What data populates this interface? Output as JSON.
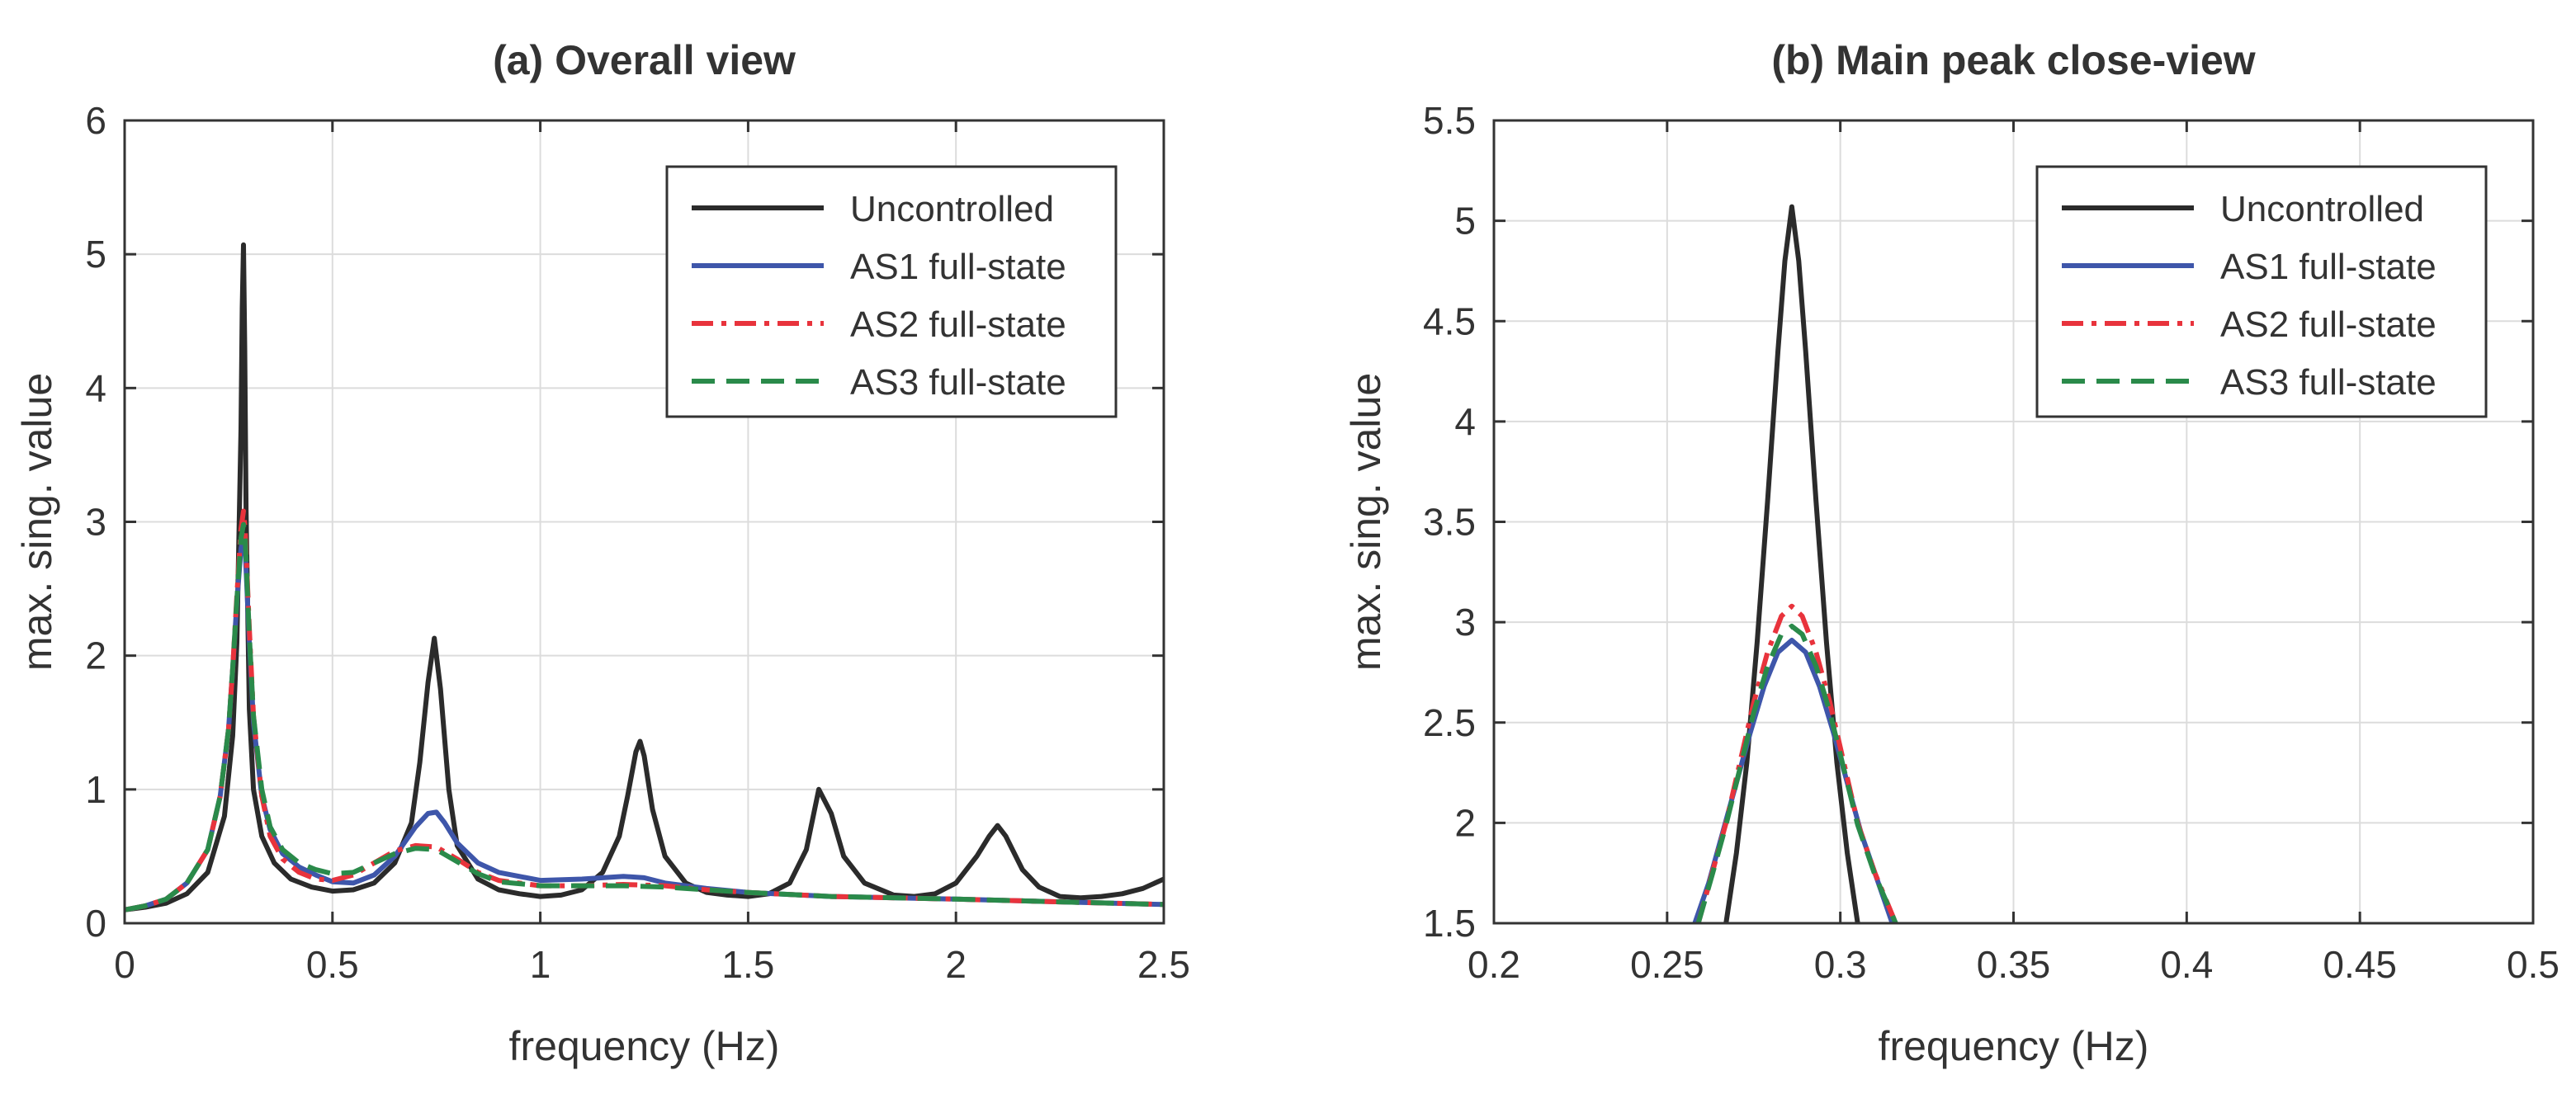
{
  "colors": {
    "uncontrolled": "#2b2b2b",
    "as1": "#3e56aa",
    "as2": "#e8333c",
    "as3": "#2a8a4a",
    "grid": "#dcdcdc",
    "axis": "#333333",
    "text": "#333333"
  },
  "chart_data": [
    {
      "type": "line",
      "title": "(a) Overall view",
      "xlabel": "frequency (Hz)",
      "ylabel": "max. sing. value",
      "xlim": [
        0,
        2.5
      ],
      "ylim": [
        0,
        6
      ],
      "xticks": [
        0,
        0.5,
        1,
        1.5,
        2,
        2.5
      ],
      "xtick_labels": [
        "0",
        "0.5",
        "1",
        "1.5",
        "2",
        "2.5"
      ],
      "yticks": [
        0,
        1,
        2,
        3,
        4,
        5,
        6
      ],
      "ytick_labels": [
        "0",
        "1",
        "2",
        "3",
        "4",
        "5",
        "6"
      ],
      "grid": true,
      "legend_position": "top-right",
      "series": [
        {
          "name": "Uncontrolled",
          "style": "solid",
          "color": "#2b2b2b",
          "x": [
            0,
            0.05,
            0.1,
            0.15,
            0.2,
            0.24,
            0.26,
            0.27,
            0.28,
            0.283,
            0.286,
            0.289,
            0.292,
            0.3,
            0.31,
            0.33,
            0.36,
            0.4,
            0.45,
            0.5,
            0.55,
            0.6,
            0.65,
            0.69,
            0.71,
            0.73,
            0.745,
            0.76,
            0.78,
            0.8,
            0.85,
            0.9,
            0.95,
            1.0,
            1.05,
            1.1,
            1.15,
            1.19,
            1.21,
            1.23,
            1.24,
            1.25,
            1.27,
            1.3,
            1.35,
            1.4,
            1.45,
            1.5,
            1.55,
            1.6,
            1.64,
            1.67,
            1.7,
            1.73,
            1.78,
            1.85,
            1.9,
            1.95,
            2.0,
            2.05,
            2.08,
            2.1,
            2.12,
            2.16,
            2.2,
            2.25,
            2.3,
            2.35,
            2.4,
            2.45,
            2.5
          ],
          "y": [
            0.1,
            0.12,
            0.15,
            0.22,
            0.38,
            0.8,
            1.4,
            2.1,
            3.7,
            4.6,
            5.07,
            4.3,
            3.1,
            1.6,
            1.0,
            0.65,
            0.45,
            0.33,
            0.27,
            0.24,
            0.25,
            0.3,
            0.45,
            0.75,
            1.2,
            1.8,
            2.13,
            1.75,
            1.0,
            0.58,
            0.33,
            0.25,
            0.22,
            0.2,
            0.21,
            0.25,
            0.38,
            0.65,
            0.95,
            1.28,
            1.36,
            1.25,
            0.85,
            0.5,
            0.3,
            0.23,
            0.21,
            0.2,
            0.22,
            0.3,
            0.55,
            1.0,
            0.82,
            0.5,
            0.3,
            0.21,
            0.2,
            0.22,
            0.3,
            0.5,
            0.65,
            0.73,
            0.65,
            0.4,
            0.27,
            0.2,
            0.19,
            0.2,
            0.22,
            0.26,
            0.33
          ]
        },
        {
          "name": "AS1 full-state",
          "style": "solid",
          "color": "#3e56aa",
          "x": [
            0,
            0.05,
            0.1,
            0.15,
            0.2,
            0.23,
            0.25,
            0.26,
            0.27,
            0.28,
            0.286,
            0.29,
            0.3,
            0.31,
            0.33,
            0.35,
            0.38,
            0.42,
            0.46,
            0.5,
            0.55,
            0.6,
            0.65,
            0.7,
            0.73,
            0.75,
            0.77,
            0.8,
            0.85,
            0.9,
            1.0,
            1.1,
            1.2,
            1.25,
            1.3,
            1.4,
            1.5,
            1.7,
            2.0,
            2.25,
            2.5
          ],
          "y": [
            0.1,
            0.13,
            0.18,
            0.3,
            0.55,
            0.95,
            1.45,
            1.9,
            2.4,
            2.8,
            2.9,
            2.8,
            2.1,
            1.5,
            0.95,
            0.7,
            0.52,
            0.42,
            0.36,
            0.31,
            0.3,
            0.36,
            0.5,
            0.72,
            0.82,
            0.83,
            0.75,
            0.6,
            0.45,
            0.38,
            0.32,
            0.33,
            0.35,
            0.34,
            0.3,
            0.26,
            0.23,
            0.2,
            0.18,
            0.16,
            0.14
          ]
        },
        {
          "name": "AS2 full-state",
          "style": "dashdot",
          "color": "#e8333c",
          "x": [
            0,
            0.05,
            0.1,
            0.15,
            0.2,
            0.23,
            0.25,
            0.26,
            0.27,
            0.28,
            0.286,
            0.29,
            0.3,
            0.31,
            0.33,
            0.35,
            0.38,
            0.42,
            0.46,
            0.5,
            0.55,
            0.6,
            0.65,
            0.7,
            0.75,
            0.8,
            0.85,
            0.9,
            1.0,
            1.1,
            1.2,
            1.3,
            1.4,
            1.5,
            1.7,
            2.0,
            2.25,
            2.5
          ],
          "y": [
            0.1,
            0.13,
            0.18,
            0.3,
            0.55,
            0.95,
            1.45,
            1.9,
            2.45,
            2.95,
            3.08,
            2.95,
            2.2,
            1.55,
            0.95,
            0.65,
            0.48,
            0.38,
            0.33,
            0.32,
            0.36,
            0.45,
            0.54,
            0.58,
            0.57,
            0.48,
            0.38,
            0.32,
            0.28,
            0.28,
            0.29,
            0.28,
            0.25,
            0.23,
            0.2,
            0.18,
            0.16,
            0.14
          ]
        },
        {
          "name": "AS3 full-state",
          "style": "dashed",
          "color": "#2a8a4a",
          "x": [
            0,
            0.05,
            0.1,
            0.15,
            0.2,
            0.23,
            0.25,
            0.26,
            0.27,
            0.28,
            0.286,
            0.29,
            0.3,
            0.31,
            0.33,
            0.35,
            0.38,
            0.42,
            0.46,
            0.5,
            0.55,
            0.6,
            0.65,
            0.7,
            0.75,
            0.8,
            0.85,
            0.9,
            1.0,
            1.1,
            1.2,
            1.3,
            1.4,
            1.5,
            1.7,
            2.0,
            2.25,
            2.5
          ],
          "y": [
            0.1,
            0.13,
            0.18,
            0.3,
            0.55,
            0.95,
            1.45,
            1.9,
            2.42,
            2.88,
            2.98,
            2.88,
            2.15,
            1.55,
            1.0,
            0.72,
            0.55,
            0.45,
            0.4,
            0.37,
            0.38,
            0.45,
            0.52,
            0.56,
            0.55,
            0.46,
            0.37,
            0.31,
            0.28,
            0.28,
            0.28,
            0.27,
            0.25,
            0.23,
            0.2,
            0.18,
            0.16,
            0.14
          ]
        }
      ]
    },
    {
      "type": "line",
      "title": "(b) Main peak close-view",
      "xlabel": "frequency (Hz)",
      "ylabel": "max. sing. value",
      "xlim": [
        0.2,
        0.5
      ],
      "ylim": [
        1.5,
        5.5
      ],
      "xticks": [
        0.2,
        0.25,
        0.3,
        0.35,
        0.4,
        0.45,
        0.5
      ],
      "xtick_labels": [
        "0.2",
        "0.25",
        "0.3",
        "0.35",
        "0.4",
        "0.45",
        "0.5"
      ],
      "yticks": [
        1.5,
        2,
        2.5,
        3,
        3.5,
        4,
        4.5,
        5,
        5.5
      ],
      "ytick_labels": [
        "1.5",
        "2",
        "2.5",
        "3",
        "3.5",
        "4",
        "4.5",
        "5",
        "5.5"
      ],
      "grid": true,
      "legend_position": "top-right",
      "series": [
        {
          "name": "Uncontrolled",
          "style": "solid",
          "color": "#2b2b2b",
          "x": [
            0.267,
            0.27,
            0.273,
            0.276,
            0.279,
            0.282,
            0.284,
            0.286,
            0.288,
            0.29,
            0.293,
            0.296,
            0.299,
            0.302,
            0.305
          ],
          "y": [
            1.5,
            1.85,
            2.3,
            2.9,
            3.6,
            4.35,
            4.8,
            5.07,
            4.8,
            4.35,
            3.6,
            2.9,
            2.3,
            1.85,
            1.5
          ]
        },
        {
          "name": "AS1 full-state",
          "style": "solid",
          "color": "#3e56aa",
          "x": [
            0.258,
            0.262,
            0.266,
            0.27,
            0.274,
            0.278,
            0.282,
            0.286,
            0.29,
            0.294,
            0.298,
            0.302,
            0.306,
            0.31,
            0.315
          ],
          "y": [
            1.5,
            1.7,
            1.95,
            2.2,
            2.45,
            2.68,
            2.85,
            2.91,
            2.85,
            2.68,
            2.45,
            2.2,
            1.95,
            1.75,
            1.5
          ]
        },
        {
          "name": "AS2 full-state",
          "style": "dashdot",
          "color": "#e8333c",
          "x": [
            0.259,
            0.263,
            0.267,
            0.271,
            0.275,
            0.279,
            0.283,
            0.286,
            0.289,
            0.293,
            0.297,
            0.301,
            0.305,
            0.31,
            0.316
          ],
          "y": [
            1.5,
            1.75,
            2.0,
            2.3,
            2.6,
            2.85,
            3.03,
            3.08,
            3.03,
            2.85,
            2.6,
            2.3,
            2.0,
            1.75,
            1.5
          ]
        },
        {
          "name": "AS3 full-state",
          "style": "dashed",
          "color": "#2a8a4a",
          "x": [
            0.259,
            0.263,
            0.267,
            0.271,
            0.275,
            0.279,
            0.283,
            0.286,
            0.289,
            0.293,
            0.297,
            0.301,
            0.305,
            0.31,
            0.316
          ],
          "y": [
            1.5,
            1.74,
            1.99,
            2.27,
            2.55,
            2.78,
            2.94,
            2.98,
            2.94,
            2.78,
            2.55,
            2.27,
            1.99,
            1.74,
            1.5
          ]
        }
      ]
    }
  ]
}
